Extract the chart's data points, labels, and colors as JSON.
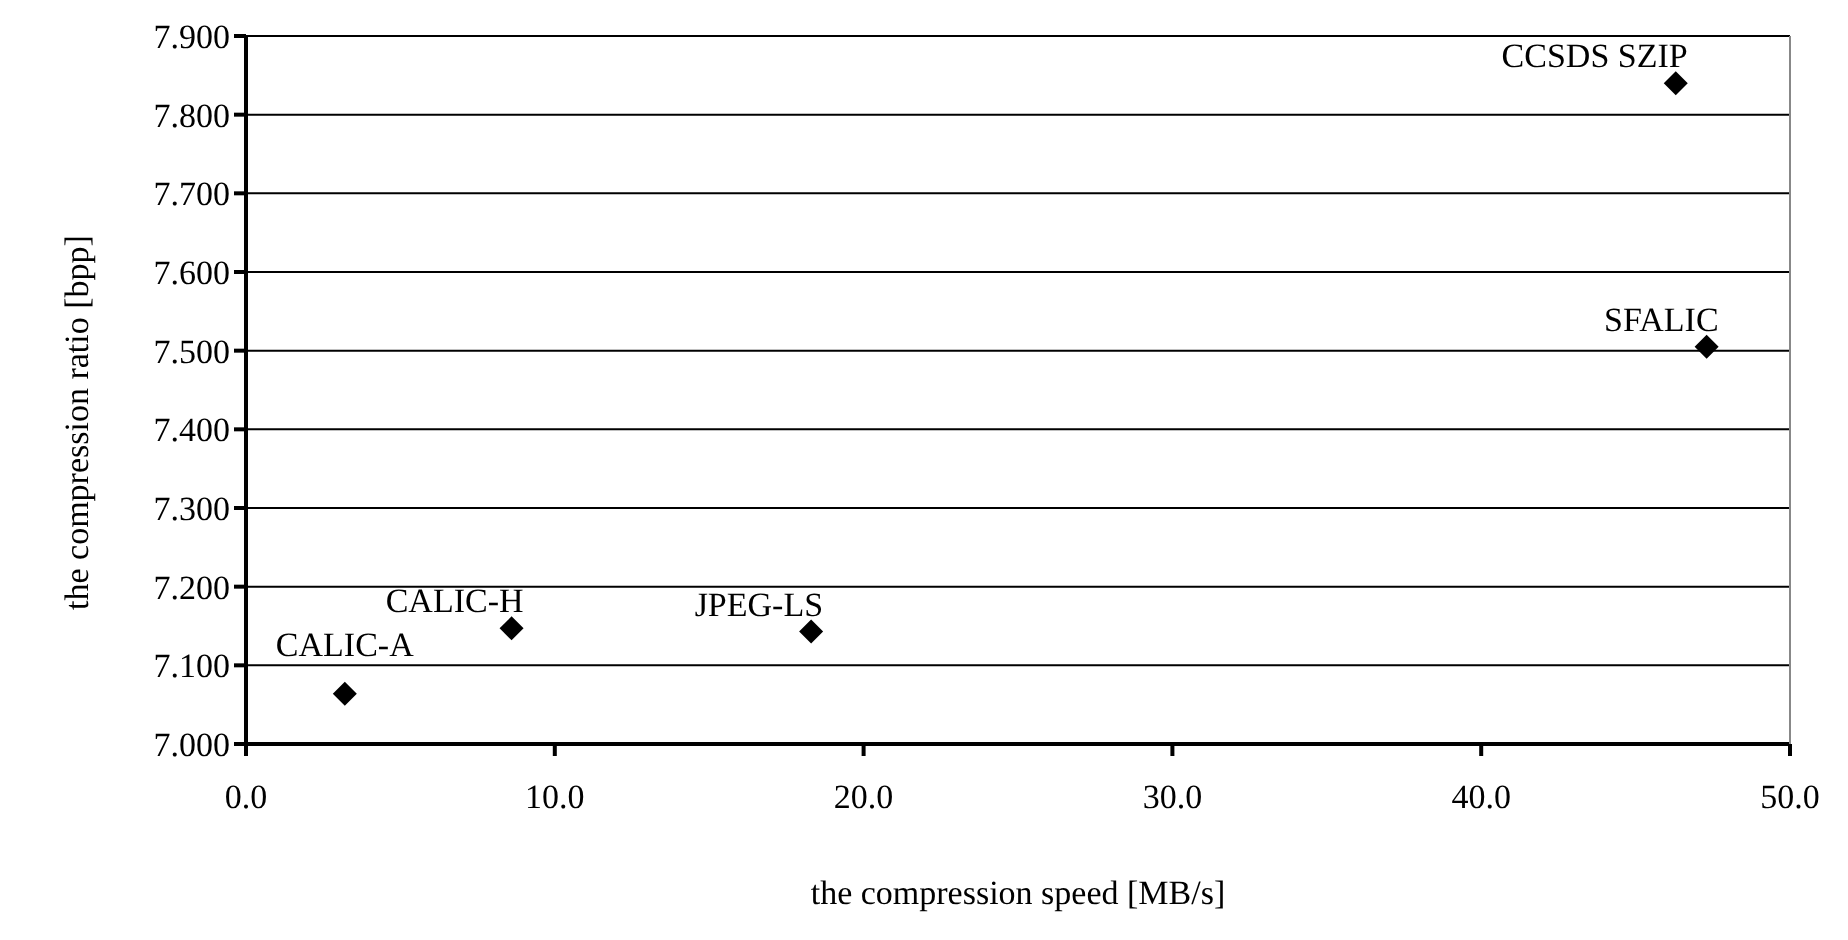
{
  "chart_data": {
    "type": "scatter",
    "xlabel": "the compression speed [MB/s]",
    "ylabel": "the compression ratio [bpp]",
    "series": [
      {
        "color": "#000000",
        "x": [
          3.2,
          8.6,
          18.3,
          46.3,
          47.3
        ],
        "values": [
          7.064,
          7.147,
          7.143,
          7.84,
          7.505
        ]
      }
    ],
    "annotations": [
      {
        "text": "CALIC-A",
        "x": 3.2,
        "y": 7.064
      },
      {
        "text": "CALIC-H",
        "x": 8.6,
        "y": 7.147
      },
      {
        "text": "JPEG-LS",
        "x": 18.3,
        "y": 7.143
      },
      {
        "text": "CCSDS SZIP",
        "x": 46.3,
        "y": 7.84
      },
      {
        "text": "SFALIC",
        "x": 47.3,
        "y": 7.505
      }
    ],
    "xlim": [
      0,
      50
    ],
    "xticks": [
      {
        "value": 0,
        "label": "0.0"
      },
      {
        "value": 10,
        "label": "10.0"
      },
      {
        "value": 20,
        "label": "20.0"
      },
      {
        "value": 30,
        "label": "30.0"
      },
      {
        "value": 40,
        "label": "40.0"
      },
      {
        "value": 50,
        "label": "50.0"
      }
    ],
    "ylim": [
      7,
      7.9
    ],
    "yticks": [
      {
        "value": 7,
        "label": "7.000"
      },
      {
        "value": 7.1,
        "label": "7.100"
      },
      {
        "value": 7.2,
        "label": "7.200"
      },
      {
        "value": 7.3,
        "label": "7.300"
      },
      {
        "value": 7.4,
        "label": "7.400"
      },
      {
        "value": 7.5,
        "label": "7.500"
      },
      {
        "value": 7.6,
        "label": "7.600"
      },
      {
        "value": 7.7,
        "label": "7.700"
      },
      {
        "value": 7.8,
        "label": "7.800"
      },
      {
        "value": 7.9,
        "label": "7.900"
      }
    ],
    "grid": "y",
    "legend": false,
    "marker": "diamond"
  }
}
